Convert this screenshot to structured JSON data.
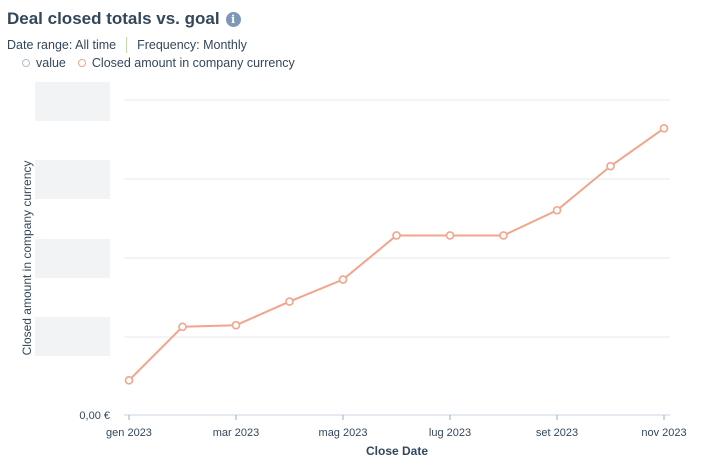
{
  "report": {
    "title": "Deal closed totals vs. goal",
    "info_icon": "info-icon",
    "filters": {
      "date_range": "Date range: All time",
      "frequency": "Frequency: Monthly"
    },
    "legend": [
      {
        "label": "value",
        "color": "#b0bccc"
      },
      {
        "label": "Closed amount in company currency",
        "color": "#f2a48c"
      }
    ]
  },
  "chart_data": {
    "type": "line",
    "title": "Deal closed totals vs. goal",
    "xlabel": "Close Date",
    "ylabel": "Closed amount in company currency",
    "x": [
      "gen 2023",
      "feb 2023",
      "mar 2023",
      "apr 2023",
      "mag 2023",
      "giu 2023",
      "lug 2023",
      "ago 2023",
      "set 2023",
      "ott 2023",
      "nov 2023"
    ],
    "x_tick_labels": [
      "gen 2023",
      "mar 2023",
      "mag 2023",
      "lug 2023",
      "set 2023",
      "nov 2023"
    ],
    "y_tick_labels": [
      "0,00 €"
    ],
    "y_tick_labels_redacted": true,
    "ylim": [
      0,
      1
    ],
    "grid": true,
    "legend_position": "top-left",
    "series": [
      {
        "name": "Closed amount in company currency",
        "color": "#f2a48c",
        "values": [
          0.11,
          0.28,
          0.285,
          0.36,
          0.43,
          0.57,
          0.57,
          0.57,
          0.65,
          0.79,
          0.91
        ]
      }
    ]
  }
}
